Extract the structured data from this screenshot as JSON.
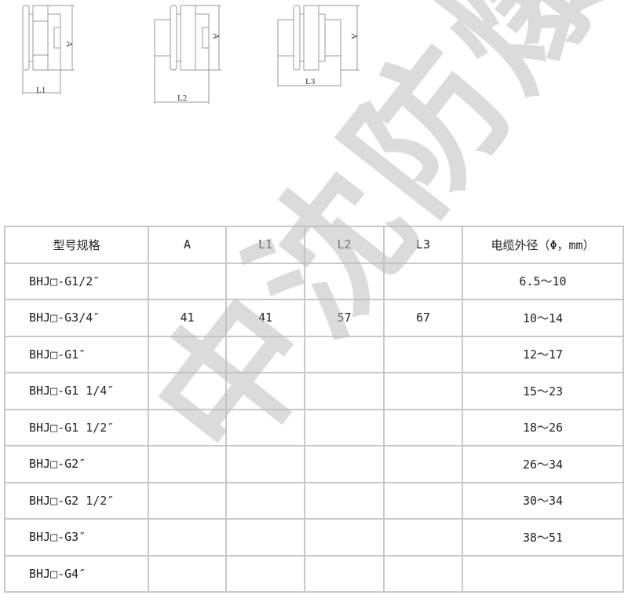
{
  "drawings": {
    "labels": [
      "A",
      "L1",
      "A",
      "L2",
      "A",
      "L3"
    ]
  },
  "table": {
    "headers": [
      "型号规格",
      "A",
      "L1",
      "L2",
      "L3",
      "电缆外径（Φ，mm）"
    ],
    "rows": [
      [
        "BHJ□-G1/2″",
        "",
        "",
        "",
        "",
        "6.5～10"
      ],
      [
        "BHJ□-G3/4″",
        "41",
        "41",
        "57",
        "67",
        "10～14"
      ],
      [
        "BHJ□-G1″",
        "",
        "",
        "",
        "",
        "12～17"
      ],
      [
        "BHJ□-G1 1/4″",
        "",
        "",
        "",
        "",
        "15～23"
      ],
      [
        "BHJ□-G1 1/2″",
        "",
        "",
        "",
        "",
        "18～26"
      ],
      [
        "BHJ□-G2″",
        "",
        "",
        "",
        "",
        "26～34"
      ],
      [
        "BHJ□-G2 1/2″",
        "",
        "",
        "",
        "",
        "30～34"
      ],
      [
        "BHJ□-G3″",
        "",
        "",
        "",
        "",
        "38～51"
      ],
      [
        "BHJ□-G4″",
        "",
        "",
        "",
        "",
        ""
      ]
    ]
  },
  "watermark": "中沈防爆"
}
